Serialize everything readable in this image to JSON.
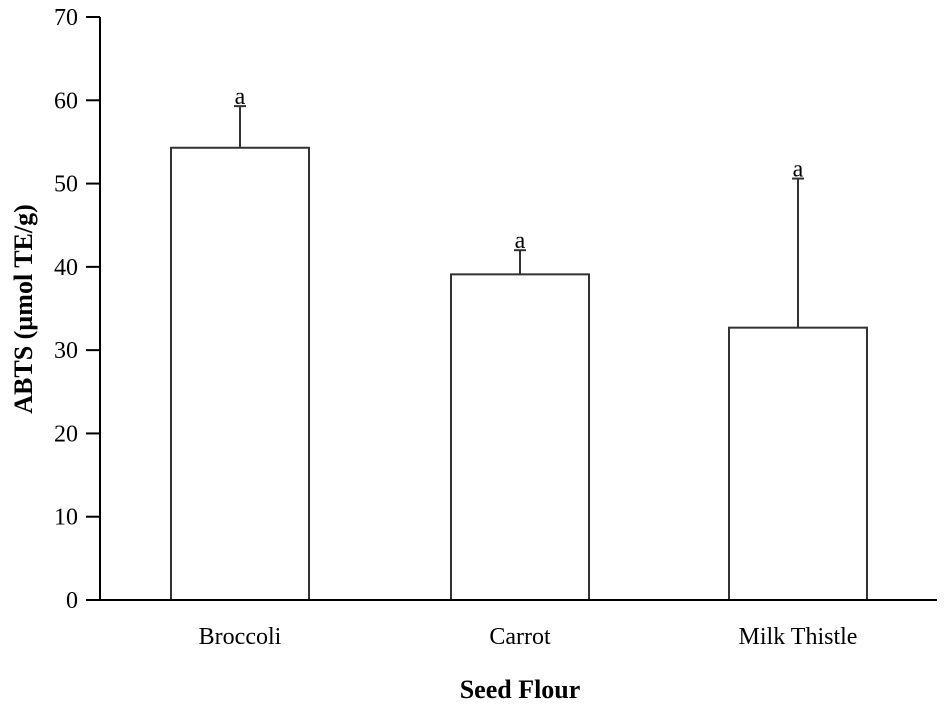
{
  "chart_data": {
    "type": "bar",
    "title": "",
    "xlabel": "Seed Flour",
    "ylabel": "ABTS (µmol TE/g)",
    "categories": [
      "Broccoli",
      "Carrot",
      "Milk Thistle"
    ],
    "values": [
      54.3,
      39.1,
      32.7
    ],
    "error_upper": [
      59.3,
      42.0,
      50.6
    ],
    "significance_labels": [
      "a",
      "a",
      "a"
    ],
    "ylim": [
      0,
      70
    ],
    "yticks": [
      0,
      10,
      20,
      30,
      40,
      50,
      60,
      70
    ],
    "grid": false,
    "legend": "none",
    "colors": {
      "bar_fill": "#ffffff",
      "bar_stroke": "#333333",
      "axis": "#000000"
    }
  }
}
